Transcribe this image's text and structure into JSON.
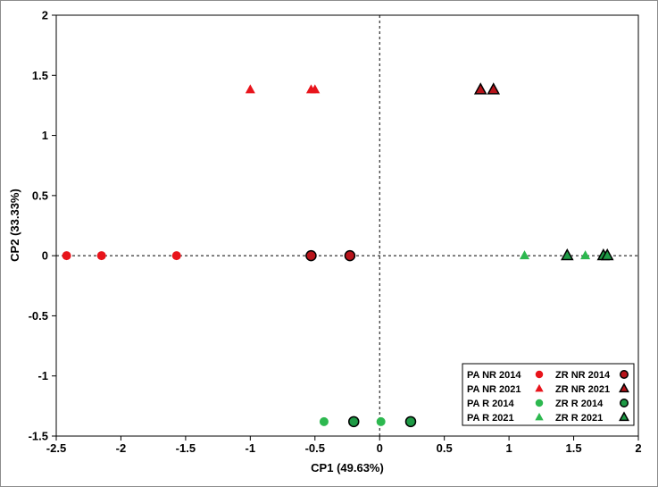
{
  "chart_data": {
    "type": "scatter",
    "xlabel": "CP1 (49.63%)",
    "ylabel": "CP2 (33.33%)",
    "xlim": [
      -2.5,
      2
    ],
    "ylim": [
      -1.5,
      2
    ],
    "xticks": [
      -2.5,
      -2,
      -1.5,
      -1,
      -0.5,
      0,
      0.5,
      1,
      1.5,
      2
    ],
    "yticks": [
      -1.5,
      -1,
      -0.5,
      0,
      0.5,
      1,
      1.5,
      2
    ],
    "x_tick_labels": [
      "-2.5",
      "-2",
      "-1.5",
      "-1",
      "-0.5",
      "0",
      "0.5",
      "1",
      "1.5",
      "2"
    ],
    "y_tick_labels": [
      "-1.5",
      "-1",
      "-0.5",
      "0",
      "0.5",
      "1",
      "1.5",
      "2"
    ],
    "reference_lines": {
      "x": 0,
      "y": 0,
      "style": "dashed"
    },
    "grid": false,
    "legend_position": "bottom-right",
    "series": [
      {
        "name": "PA NR 2014",
        "marker": "circle",
        "color": "#e8141b",
        "outlined": false,
        "points": [
          [
            -2.42,
            0
          ],
          [
            -2.15,
            0
          ],
          [
            -1.57,
            0
          ]
        ]
      },
      {
        "name": "PA NR 2021",
        "marker": "triangle",
        "color": "#e8141b",
        "outlined": false,
        "points": [
          [
            -1.0,
            1.38
          ],
          [
            -0.53,
            1.38
          ],
          [
            -0.5,
            1.38
          ]
        ]
      },
      {
        "name": "PA R 2014",
        "marker": "circle",
        "color": "#2db84f",
        "outlined": false,
        "points": [
          [
            -0.43,
            -1.38
          ],
          [
            0.01,
            -1.38
          ]
        ]
      },
      {
        "name": "PA R 2021",
        "marker": "triangle",
        "color": "#2db84f",
        "outlined": false,
        "points": [
          [
            1.12,
            0
          ],
          [
            1.59,
            0
          ]
        ]
      },
      {
        "name": "ZR NR 2014",
        "marker": "circle",
        "color": "#b8141b",
        "outlined": true,
        "points": [
          [
            -0.53,
            0
          ],
          [
            -0.23,
            0
          ]
        ]
      },
      {
        "name": "ZR NR 2021",
        "marker": "triangle",
        "color": "#b8141b",
        "outlined": true,
        "points": [
          [
            0.78,
            1.38
          ],
          [
            0.88,
            1.38
          ]
        ]
      },
      {
        "name": "ZR R 2014",
        "marker": "circle",
        "color": "#1e9a45",
        "outlined": true,
        "points": [
          [
            -0.2,
            -1.38
          ],
          [
            0.24,
            -1.38
          ]
        ]
      },
      {
        "name": "ZR R 2021",
        "marker": "triangle",
        "color": "#1e9a45",
        "outlined": true,
        "points": [
          [
            1.45,
            0
          ],
          [
            1.73,
            0
          ],
          [
            1.76,
            0
          ]
        ]
      }
    ],
    "legend": {
      "left_column": [
        "PA NR 2014",
        "PA NR 2021",
        "PA R 2014",
        "PA R 2021"
      ],
      "right_column": [
        "ZR NR 2014",
        "ZR NR 2021",
        "ZR R 2014",
        "ZR R 2021"
      ]
    }
  }
}
